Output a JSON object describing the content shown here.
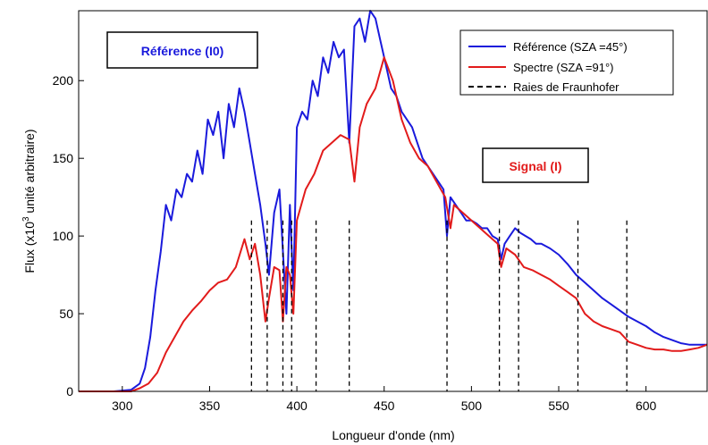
{
  "chart_data": {
    "type": "line",
    "xlabel": "Longueur d'onde (nm)",
    "ylabel_pre": "Flux (x10",
    "ylabel_sup": "3",
    "ylabel_post": " unité arbitraire)",
    "xlim": [
      275,
      635
    ],
    "ylim": [
      0,
      245
    ],
    "xticks": [
      300,
      350,
      400,
      450,
      500,
      550,
      600
    ],
    "yticks": [
      0,
      50,
      100,
      150,
      200
    ],
    "grid": false,
    "legend_position": "top-right",
    "series": [
      {
        "name": "Référence (SZA =45°)",
        "color": "#1a1adc",
        "style": "solid",
        "x": [
          275,
          295,
          305,
          310,
          313,
          316,
          319,
          322,
          325,
          328,
          331,
          334,
          337,
          340,
          343,
          346,
          349,
          352,
          355,
          358,
          361,
          364,
          367,
          370,
          373,
          376,
          379,
          382,
          384,
          387,
          390,
          392,
          394,
          396,
          398,
          400,
          403,
          406,
          409,
          412,
          415,
          418,
          421,
          424,
          427,
          430,
          433,
          436,
          439,
          442,
          445,
          448,
          451,
          454,
          457,
          460,
          463,
          466,
          469,
          472,
          475,
          478,
          481,
          484,
          486,
          488,
          491,
          494,
          497,
          500,
          503,
          506,
          509,
          512,
          515,
          517,
          519,
          522,
          525,
          528,
          531,
          534,
          537,
          540,
          545,
          550,
          555,
          560,
          565,
          570,
          575,
          580,
          585,
          590,
          595,
          600,
          605,
          610,
          615,
          620,
          625,
          630,
          635
        ],
        "values": [
          0,
          0,
          1,
          5,
          15,
          35,
          65,
          90,
          120,
          110,
          130,
          125,
          140,
          135,
          155,
          140,
          175,
          165,
          180,
          150,
          185,
          170,
          195,
          180,
          160,
          140,
          120,
          95,
          75,
          115,
          130,
          90,
          50,
          120,
          65,
          170,
          180,
          175,
          200,
          190,
          215,
          205,
          225,
          215,
          220,
          160,
          235,
          240,
          225,
          245,
          240,
          225,
          210,
          195,
          190,
          180,
          175,
          170,
          160,
          150,
          145,
          140,
          135,
          130,
          100,
          125,
          120,
          115,
          110,
          110,
          108,
          105,
          105,
          100,
          98,
          85,
          95,
          100,
          105,
          102,
          100,
          98,
          95,
          95,
          92,
          88,
          82,
          75,
          70,
          65,
          60,
          56,
          52,
          48,
          45,
          42,
          38,
          35,
          33,
          31,
          30,
          30,
          30
        ]
      },
      {
        "name": "Spectre (SZA =91°)",
        "color": "#e21b1b",
        "style": "solid",
        "x": [
          275,
          300,
          305,
          310,
          315,
          320,
          325,
          330,
          335,
          340,
          345,
          350,
          355,
          360,
          365,
          370,
          373,
          376,
          379,
          382,
          384,
          387,
          390,
          392,
          394,
          396,
          398,
          400,
          405,
          410,
          415,
          420,
          425,
          430,
          433,
          436,
          440,
          445,
          450,
          455,
          460,
          465,
          470,
          475,
          480,
          485,
          488,
          490,
          495,
          500,
          505,
          510,
          515,
          517,
          520,
          525,
          530,
          535,
          540,
          545,
          550,
          555,
          560,
          565,
          570,
          575,
          580,
          585,
          590,
          595,
          600,
          605,
          610,
          615,
          620,
          625,
          630,
          635
        ],
        "values": [
          0,
          0,
          0,
          2,
          5,
          12,
          25,
          35,
          45,
          52,
          58,
          65,
          70,
          72,
          80,
          98,
          85,
          95,
          75,
          45,
          60,
          80,
          78,
          45,
          80,
          75,
          50,
          110,
          130,
          140,
          155,
          160,
          165,
          162,
          135,
          170,
          185,
          195,
          215,
          200,
          175,
          160,
          150,
          145,
          135,
          125,
          105,
          120,
          115,
          110,
          105,
          100,
          95,
          80,
          92,
          88,
          80,
          78,
          75,
          72,
          68,
          64,
          60,
          50,
          45,
          42,
          40,
          38,
          32,
          30,
          28,
          27,
          27,
          26,
          26,
          27,
          28,
          30
        ]
      }
    ],
    "fraunhofer_lines": [
      374,
      383,
      392,
      397,
      411,
      430,
      486,
      516,
      527,
      561,
      589
    ],
    "fraunhofer_name": "Raies de Fraunhofer",
    "annotations": [
      {
        "text": "Référence (I0)",
        "color": "#1a1adc"
      },
      {
        "text": "Signal (I)",
        "color": "#e21b1b"
      }
    ]
  }
}
